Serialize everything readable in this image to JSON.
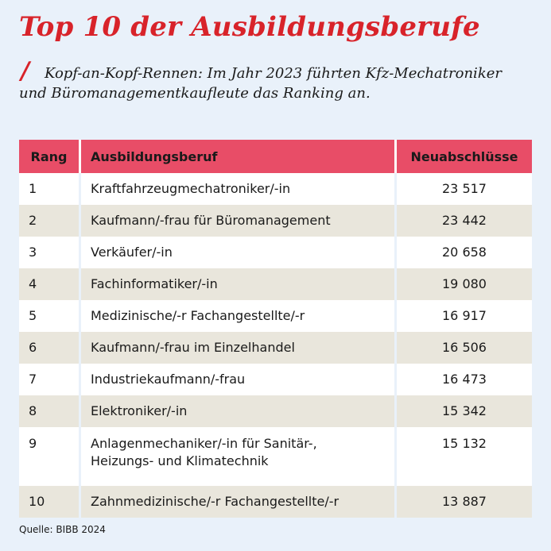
{
  "title": "Top 10 der Ausbildungsberufe",
  "subtitle_line1": "Kopf-an-Kopf-Rennen: Im Jahr 2023 führten Kfz-Mechatroniker",
  "subtitle_line2": "und Büromanagementkaufleute das Ranking an.",
  "slash": "/",
  "table": {
    "headers": [
      "Rang",
      "Ausbildungsberuf",
      "Neuabschlüsse"
    ],
    "rows": [
      {
        "rank": "1",
        "job": "Kraftfahrzeugmechatroniker/-in",
        "count": "23 517"
      },
      {
        "rank": "2",
        "job": "Kaufmann/-frau für Büromanagement",
        "count": "23 442"
      },
      {
        "rank": "3",
        "job": "Verkäufer/-in",
        "count": "20 658"
      },
      {
        "rank": "4",
        "job": "Fachinformatiker/-in",
        "count": "19 080"
      },
      {
        "rank": "5",
        "job": "Medizinische/-r Fachangestellte/-r",
        "count": "16 917"
      },
      {
        "rank": "6",
        "job": "Kaufmann/-frau im Einzelhandel",
        "count": "16 506"
      },
      {
        "rank": "7",
        "job": "Industriekaufmann/-frau",
        "count": "16 473"
      },
      {
        "rank": "8",
        "job": "Elektroniker/-in",
        "count": "15 342"
      },
      {
        "rank": "9",
        "job": "Anlagenmechaniker/-in für Sanitär-,",
        "job2": "Heizungs- und Klimatechnik",
        "count": "15 132"
      },
      {
        "rank": "10",
        "job": "Zahnmedizinische/-r Fachangestellte/-r",
        "count": "13 887"
      }
    ]
  },
  "source": "Quelle: BIBB 2024",
  "colors": {
    "accent": "#d8232a",
    "header": "#e84d67",
    "background": "#e9f1fa",
    "stripe": "#e9e6dc"
  }
}
